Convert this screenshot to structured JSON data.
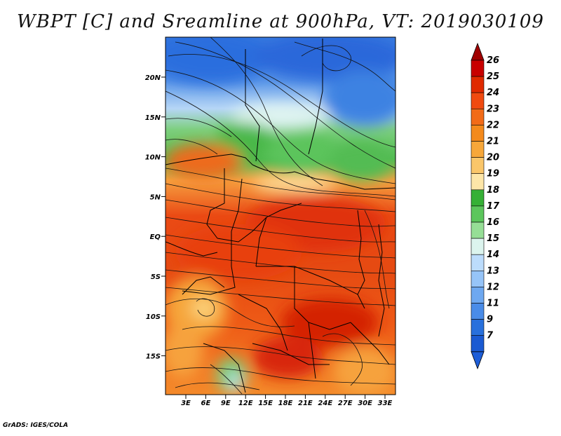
{
  "title": "WBPT [C] and Sreamline at 900hPa, VT: 2019030109",
  "credit": "GrADS: IGES/COLA",
  "map": {
    "lat_labels": [
      "20N",
      "15N",
      "10N",
      "5N",
      "EQ",
      "5S",
      "10S",
      "15S"
    ],
    "lon_labels": [
      "3E",
      "6E",
      "9E",
      "12E",
      "15E",
      "18E",
      "21E",
      "24E",
      "27E",
      "30E",
      "33E"
    ]
  },
  "colorbar": {
    "labels": [
      "26",
      "25",
      "24",
      "23",
      "22",
      "21",
      "20",
      "19",
      "18",
      "17",
      "16",
      "15",
      "14",
      "13",
      "12",
      "11",
      "9",
      "7"
    ],
    "colors": [
      "#c80000",
      "#e02a00",
      "#f04a10",
      "#f26b18",
      "#f48a1c",
      "#f7a73a",
      "#fac66a",
      "#fde6a8",
      "#36b036",
      "#5cc65c",
      "#96de96",
      "#dcf4ee",
      "#bcdcfc",
      "#96c4f8",
      "#6ea8f0",
      "#4a8ce8",
      "#2870dc",
      "#1a5ad2"
    ],
    "end_colors": {
      "top": "#a00000",
      "bottom": "#1e5ed8"
    }
  }
}
